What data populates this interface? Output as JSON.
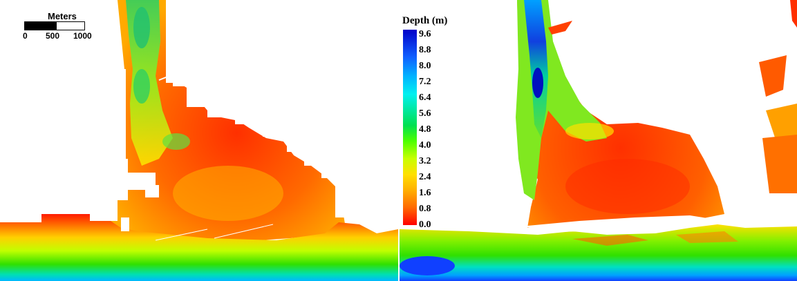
{
  "scale_bar": {
    "title": "Meters",
    "ticks": [
      "0",
      "500",
      "1000"
    ]
  },
  "legend": {
    "title": "Depth (m)",
    "labels": [
      "9.6",
      "8.8",
      "8.0",
      "7.2",
      "6.4",
      "5.6",
      "4.8",
      "4.0",
      "3.2",
      "2.4",
      "1.6",
      "0.8",
      "0.0"
    ]
  },
  "colors": {
    "shallow": "#ff0000",
    "mid_shallow": "#ff8c00",
    "mid": "#ffee00",
    "mid_deep": "#30e000",
    "deep_cyan": "#00e0e0",
    "deepest": "#0000c8",
    "background": "#ffffff"
  }
}
